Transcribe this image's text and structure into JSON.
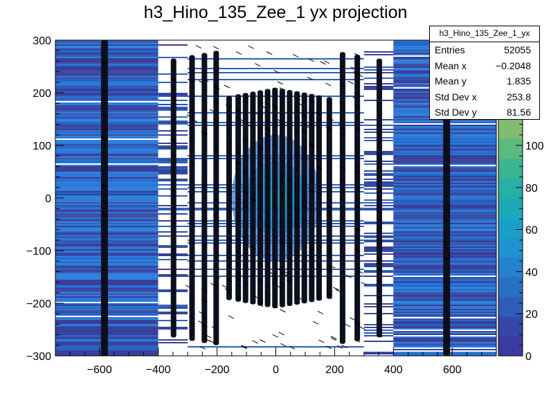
{
  "chart_data": {
    "type": "heatmap",
    "title": "h3_Hino_135_Zee_1 yx projection",
    "xlabel": "",
    "ylabel": "",
    "xlim": [
      -750,
      750
    ],
    "ylim": [
      -300,
      300
    ],
    "x_ticks": [
      -600,
      -400,
      -200,
      0,
      200,
      400,
      600
    ],
    "x_tick_labels": [
      "−600",
      "−400",
      "−200",
      "0",
      "200",
      "400",
      "600"
    ],
    "y_ticks": [
      -300,
      -200,
      -100,
      0,
      100,
      200,
      300
    ],
    "y_tick_labels": [
      "−300",
      "−200",
      "−100",
      "0",
      "100",
      "200",
      "300"
    ],
    "z_range": [
      0,
      150
    ],
    "z_ticks": [
      0,
      20,
      40,
      60,
      80,
      100
    ],
    "z_tick_labels": [
      "0",
      "20",
      "40",
      "60",
      "80",
      "100"
    ],
    "colorbar_colors": [
      "#3b3b9f",
      "#3548a8",
      "#2f5cb8",
      "#2a6fc6",
      "#2482cf",
      "#1f93d0",
      "#1aa0c8",
      "#1ca9b8",
      "#27b0a6",
      "#3bb592",
      "#5aba80",
      "#7fbd70",
      "#a4bd64",
      "#c5b95b",
      "#dfb257",
      "#f0b04f"
    ],
    "x_band_edges": [
      -750,
      -400,
      -300,
      300,
      400,
      750
    ],
    "dense_columns_x": [
      -583,
      -348,
      -285,
      -243,
      -203,
      -159,
      -128,
      -103,
      -78,
      -53,
      -28,
      -3,
      22,
      47,
      72,
      97,
      122,
      147,
      182,
      227,
      277,
      352,
      581
    ],
    "stats": {
      "header": "h3_Hino_135_Zee_1_yx",
      "rows": [
        {
          "label": "Entries",
          "value": "52055"
        },
        {
          "label": "Mean x",
          "value": "−0.2048"
        },
        {
          "label": "Mean y",
          "value": "1.835"
        },
        {
          "label": "Std Dev x",
          "value": "253.8"
        },
        {
          "label": "Std Dev y",
          "value": "81.56"
        }
      ]
    }
  }
}
